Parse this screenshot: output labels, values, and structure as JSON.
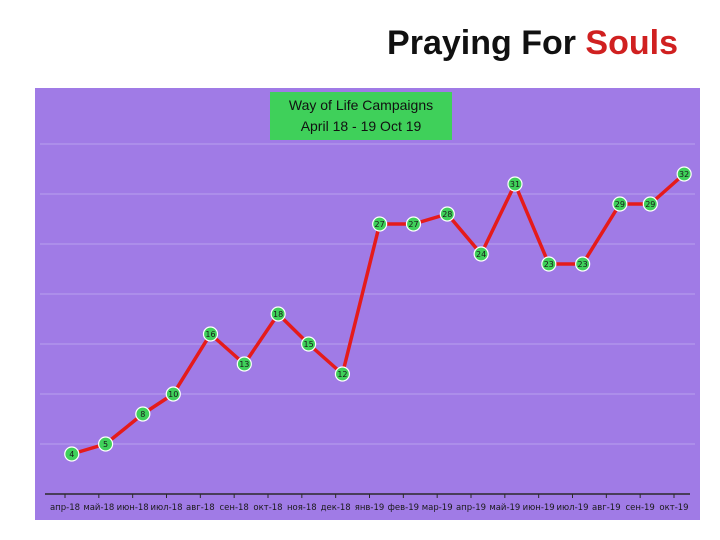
{
  "slide": {
    "title_main": "Praying For ",
    "title_accent": "Souls",
    "accent_color": "#d02020"
  },
  "chart_data": {
    "type": "line",
    "title_line1": "Way of Life Campaigns",
    "title_line2": "April 18 - 19 Oct 19",
    "categories": [
      "апр-18",
      "май-18",
      "июн-18",
      "июл-18",
      "авг-18",
      "сен-18",
      "окт-18",
      "ноя-18",
      "дек-18",
      "янв-19",
      "фев-19",
      "мар-19",
      "апр-19",
      "май-19",
      "июн-19",
      "июл-19",
      "авг-19",
      "сен-19",
      "окт-19"
    ],
    "x_positions": [
      0,
      1,
      2,
      3,
      4,
      5,
      6,
      7,
      8,
      9,
      10,
      11,
      12,
      13,
      14,
      15,
      16,
      17,
      18
    ],
    "points": [
      {
        "x": 0.2,
        "y": 4
      },
      {
        "x": 1.2,
        "y": 5
      },
      {
        "x": 2.3,
        "y": 8
      },
      {
        "x": 3.2,
        "y": 10
      },
      {
        "x": 4.3,
        "y": 16
      },
      {
        "x": 5.3,
        "y": 13
      },
      {
        "x": 6.3,
        "y": 18
      },
      {
        "x": 7.2,
        "y": 15
      },
      {
        "x": 8.2,
        "y": 12
      },
      {
        "x": 9.3,
        "y": 27
      },
      {
        "x": 10.3,
        "y": 27
      },
      {
        "x": 11.3,
        "y": 28
      },
      {
        "x": 12.3,
        "y": 24
      },
      {
        "x": 13.3,
        "y": 31
      },
      {
        "x": 14.3,
        "y": 23
      },
      {
        "x": 15.3,
        "y": 23
      },
      {
        "x": 16.4,
        "y": 29
      },
      {
        "x": 17.3,
        "y": 29
      },
      {
        "x": 18.3,
        "y": 32
      }
    ],
    "line_color": "#e51b1b",
    "marker_fill": "#3fd05a",
    "label_color": "#1a1a1a",
    "plot_bg": "#a07be6",
    "gridline_color": "#b9a0ee",
    "title_bg": "#3fd05a",
    "ylim": [
      0,
      40
    ],
    "grid": true,
    "legend": "none"
  }
}
